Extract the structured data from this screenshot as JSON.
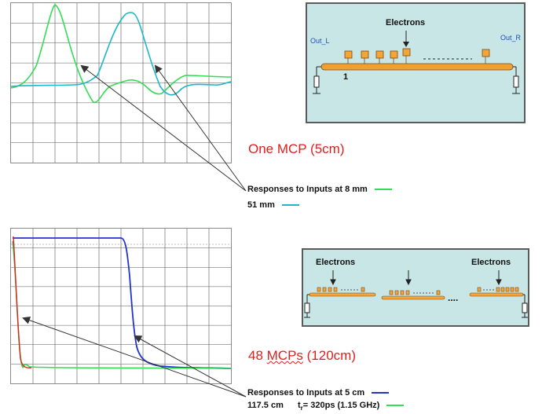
{
  "top": {
    "title": "One MCP (5cm)",
    "panel": {
      "electrons_label": "Electrons",
      "out_left": "Out_L",
      "out_right": "Out_R",
      "pad_number": "1"
    },
    "legend": {
      "line1_text": "Responses to Inputs at 8 mm",
      "line1_color": "#33dd55",
      "line2_text": "51 mm",
      "line2_color": "#1fb8c6"
    },
    "waveforms": [
      {
        "name": "8 mm",
        "color": "#33dd55"
      },
      {
        "name": "51 mm",
        "color": "#1fb8c6"
      }
    ]
  },
  "bottom": {
    "title_prefix": "48 ",
    "title_underlined": "MCPs",
    "title_suffix": " (120cm)",
    "panel": {
      "electrons_left": "Electrons",
      "electrons_right": "Electrons",
      "ellipsis": "...."
    },
    "legend": {
      "line1_text": "Responses to Inputs at 5 cm",
      "line1_color": "#2233cc",
      "line2_text_a": "117.5 cm",
      "line2_text_b": "t",
      "line2_sub": "r",
      "line2_text_c": "= 320ps (1.15 GHz)",
      "line2_color": "#33dd55"
    },
    "waveforms": [
      {
        "name": "5 cm",
        "color": "#2233cc"
      },
      {
        "name": "117.5 cm",
        "color": "#33dd55"
      },
      {
        "name": "edge",
        "color": "#e02020"
      }
    ]
  },
  "colors": {
    "panel_bg": "#c9e6e6",
    "pad": "#f4a53a",
    "bar": "#f0a030",
    "arrow": "#333333",
    "title": "#e01e1e"
  }
}
